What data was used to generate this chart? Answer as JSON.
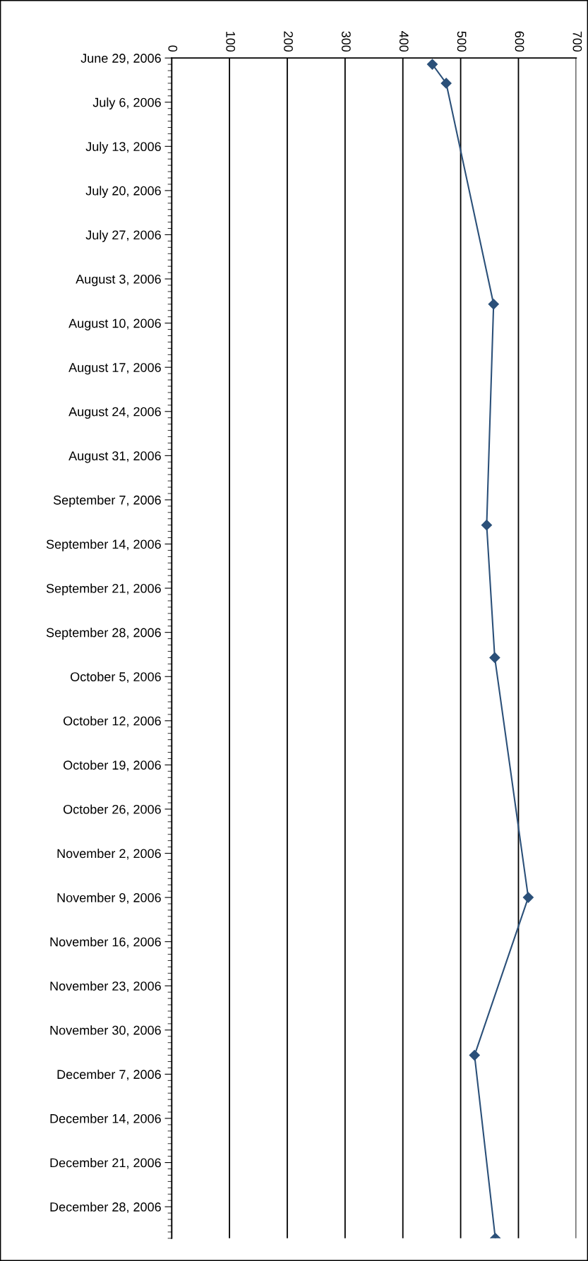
{
  "chart_data": {
    "type": "line",
    "orientation": "horizontal",
    "x": [
      "2006-06-30",
      "2006-07-03",
      "2006-08-07",
      "2006-09-11",
      "2006-10-02",
      "2006-11-09",
      "2006-12-04",
      "2007-01-02"
    ],
    "series": [
      {
        "color": "#2b5079",
        "values": [
          451,
          475,
          557,
          545,
          559,
          617,
          524,
          560
        ]
      }
    ],
    "marker": "diamond",
    "line_style": "solid",
    "grid": "x",
    "xlim": [
      0,
      700
    ],
    "xticks": [
      0,
      100,
      200,
      300,
      400,
      500,
      600,
      700
    ],
    "ylim": [
      "2007-01-02",
      "2006-06-29"
    ],
    "yticks": [
      {
        "value": "2006-06-29",
        "label": "June 29, 2006"
      },
      {
        "value": "2006-07-06",
        "label": "July 6, 2006"
      },
      {
        "value": "2006-07-13",
        "label": "July 13, 2006"
      },
      {
        "value": "2006-07-20",
        "label": "July 20, 2006"
      },
      {
        "value": "2006-07-27",
        "label": "July 27, 2006"
      },
      {
        "value": "2006-08-03",
        "label": "August 3, 2006"
      },
      {
        "value": "2006-08-10",
        "label": "August 10, 2006"
      },
      {
        "value": "2006-08-17",
        "label": "August 17, 2006"
      },
      {
        "value": "2006-08-24",
        "label": "August 24, 2006"
      },
      {
        "value": "2006-08-31",
        "label": "August 31, 2006"
      },
      {
        "value": "2006-09-07",
        "label": "September 7, 2006"
      },
      {
        "value": "2006-09-14",
        "label": "September 14, 2006"
      },
      {
        "value": "2006-09-21",
        "label": "September 21, 2006"
      },
      {
        "value": "2006-09-28",
        "label": "September 28, 2006"
      },
      {
        "value": "2006-10-05",
        "label": "October 5, 2006"
      },
      {
        "value": "2006-10-12",
        "label": "October 12, 2006"
      },
      {
        "value": "2006-10-19",
        "label": "October 19, 2006"
      },
      {
        "value": "2006-10-26",
        "label": "October 26, 2006"
      },
      {
        "value": "2006-11-02",
        "label": "November 2, 2006"
      },
      {
        "value": "2006-11-09",
        "label": "November 9, 2006"
      },
      {
        "value": "2006-11-16",
        "label": "November 16, 2006"
      },
      {
        "value": "2006-11-23",
        "label": "November 23, 2006"
      },
      {
        "value": "2006-11-30",
        "label": "November 30, 2006"
      },
      {
        "value": "2006-12-07",
        "label": "December 7, 2006"
      },
      {
        "value": "2006-12-14",
        "label": "December 14, 2006"
      },
      {
        "value": "2006-12-21",
        "label": "December 21, 2006"
      },
      {
        "value": "2006-12-28",
        "label": "December 28, 2006"
      }
    ]
  }
}
